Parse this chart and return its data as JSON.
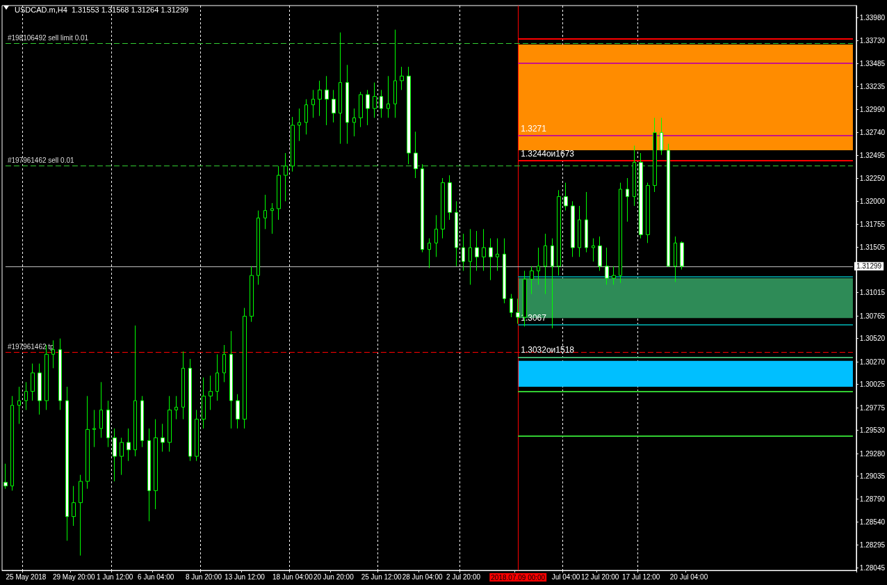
{
  "chart_data": {
    "type": "candlestick",
    "title": "USDCAD.m,H4  1.31553 1.31568 1.31264 1.31299",
    "color": "#00ff00",
    "categories": [
      null,
      null,
      null,
      "25 May 2018",
      null,
      null,
      null,
      null,
      null,
      null,
      "29 May 20:00",
      null,
      null,
      null,
      null,
      null,
      "1 Jun 12:00",
      null,
      null,
      null,
      null,
      null,
      "6 Jun 04:00",
      null,
      null,
      null,
      null,
      null,
      null,
      "8 Jun 20:00",
      null,
      null,
      null,
      null,
      null,
      "13 Jun 12:00",
      null,
      null,
      null,
      null,
      null,
      null,
      "18 Jun 04:00",
      null,
      null,
      null,
      null,
      null,
      "20 Jun 20:00",
      null,
      null,
      null,
      null,
      null,
      null,
      "25 Jun 12:00",
      null,
      null,
      null,
      null,
      null,
      "28 Jun 04:00",
      null,
      null,
      null,
      null,
      null,
      "2 Jul 20:00",
      null,
      null,
      null,
      null,
      null,
      null,
      null,
      "2018.07.09 00:00",
      null,
      null,
      null,
      null,
      null,
      null,
      "Jul 04:00",
      null,
      null,
      null,
      null,
      "12 Jul 20:00",
      null,
      null,
      null,
      null,
      null,
      "17 Jul 12:00",
      null,
      null,
      null,
      null,
      null,
      null,
      "20 Jul 04:00",
      null,
      null,
      null,
      null,
      null,
      null,
      null,
      null,
      null,
      null,
      null,
      null,
      null,
      null,
      null,
      null,
      null,
      null,
      null,
      null,
      null,
      null,
      null,
      null
    ],
    "ohlc": [
      [
        1.2897,
        1.2917,
        1.289,
        1.2893
      ],
      [
        1.2893,
        1.299,
        1.2888,
        1.298
      ],
      [
        1.298,
        1.3,
        1.296,
        1.2985
      ],
      [
        1.2985,
        1.3005,
        1.2975,
        1.2995
      ],
      [
        1.2995,
        1.3025,
        1.2985,
        1.3015
      ],
      [
        1.3015,
        1.3025,
        1.297,
        1.2985
      ],
      [
        1.2985,
        1.3045,
        1.2975,
        1.3035
      ],
      [
        1.3035,
        1.305,
        1.302,
        1.304
      ],
      [
        1.304,
        1.3052,
        1.2975,
        1.2985
      ],
      [
        1.2985,
        1.3,
        1.2834,
        1.286
      ],
      [
        1.286,
        1.2893,
        1.285,
        1.2875
      ],
      [
        1.2875,
        1.2905,
        1.2818,
        1.2898
      ],
      [
        1.2898,
        1.299,
        1.289,
        1.2954
      ],
      [
        1.2954,
        1.2975,
        1.2935,
        1.2955
      ],
      [
        1.2955,
        1.3005,
        1.2945,
        1.2975
      ],
      [
        1.2975,
        1.2985,
        1.2935,
        1.2945
      ],
      [
        1.2945,
        1.2955,
        1.2898,
        1.2925
      ],
      [
        1.2925,
        1.2945,
        1.2905,
        1.294
      ],
      [
        1.294,
        1.2955,
        1.292,
        1.2932
      ],
      [
        1.2932,
        1.3066,
        1.2925,
        1.2985
      ],
      [
        1.2985,
        1.299,
        1.2935,
        1.2942
      ],
      [
        1.2942,
        1.2955,
        1.2855,
        1.2888
      ],
      [
        1.2888,
        1.2965,
        1.2868,
        1.2945
      ],
      [
        1.2945,
        1.296,
        1.293,
        1.294
      ],
      [
        1.294,
        1.299,
        1.293,
        1.2975
      ],
      [
        1.2975,
        1.299,
        1.2965,
        1.2978
      ],
      [
        1.2978,
        1.3038,
        1.2965,
        1.302
      ],
      [
        1.302,
        1.303,
        1.292,
        1.2925
      ],
      [
        1.2925,
        1.2975,
        1.292,
        1.2965
      ],
      [
        1.2965,
        1.301,
        1.2955,
        1.299
      ],
      [
        1.299,
        1.3012,
        1.2975,
        1.2995
      ],
      [
        1.2995,
        1.3035,
        1.2985,
        1.3015
      ],
      [
        1.3015,
        1.3045,
        1.3005,
        1.3035
      ],
      [
        1.3035,
        1.306,
        1.2955,
        1.2985
      ],
      [
        1.2985,
        1.2992,
        1.2955,
        1.2965
      ],
      [
        1.2965,
        1.3085,
        1.2955,
        1.3076
      ],
      [
        1.3076,
        1.313,
        1.307,
        1.312
      ],
      [
        1.312,
        1.319,
        1.311,
        1.3182
      ],
      [
        1.3182,
        1.3207,
        1.317,
        1.319
      ],
      [
        1.319,
        1.3198,
        1.3165,
        1.3192
      ],
      [
        1.3192,
        1.3238,
        1.318,
        1.3228
      ],
      [
        1.3228,
        1.3252,
        1.32,
        1.3238
      ],
      [
        1.3238,
        1.3291,
        1.3232,
        1.3282
      ],
      [
        1.3282,
        1.33,
        1.3265,
        1.3285
      ],
      [
        1.3285,
        1.331,
        1.3272,
        1.3304
      ],
      [
        1.3304,
        1.332,
        1.329,
        1.331
      ],
      [
        1.331,
        1.333,
        1.3292,
        1.332
      ],
      [
        1.332,
        1.3335,
        1.3282,
        1.331
      ],
      [
        1.331,
        1.332,
        1.3285,
        1.3295
      ],
      [
        1.3295,
        1.3382,
        1.3262,
        1.3328
      ],
      [
        1.3328,
        1.3347,
        1.3262,
        1.3285
      ],
      [
        1.3285,
        1.33,
        1.327,
        1.329
      ],
      [
        1.329,
        1.3318,
        1.328,
        1.3315
      ],
      [
        1.3315,
        1.332,
        1.3282,
        1.33
      ],
      [
        1.33,
        1.3328,
        1.329,
        1.3313
      ],
      [
        1.3313,
        1.332,
        1.329,
        1.33
      ],
      [
        1.33,
        1.3335,
        1.329,
        1.3305
      ],
      [
        1.3305,
        1.3385,
        1.329,
        1.333
      ],
      [
        1.333,
        1.3345,
        1.332,
        1.3335
      ],
      [
        1.3335,
        1.3345,
        1.324,
        1.3252
      ],
      [
        1.3252,
        1.3275,
        1.3225,
        1.3235
      ],
      [
        1.3235,
        1.324,
        1.3145,
        1.3148
      ],
      [
        1.3148,
        1.316,
        1.3128,
        1.3155
      ],
      [
        1.3155,
        1.3185,
        1.314,
        1.317
      ],
      [
        1.317,
        1.3225,
        1.316,
        1.322
      ],
      [
        1.322,
        1.3228,
        1.318,
        1.3188
      ],
      [
        1.3188,
        1.32,
        1.313,
        1.315
      ],
      [
        1.315,
        1.3165,
        1.3125,
        1.3135
      ],
      [
        1.3135,
        1.317,
        1.311,
        1.315
      ],
      [
        1.315,
        1.3168,
        1.3125,
        1.314
      ],
      [
        1.314,
        1.317,
        1.3125,
        1.315
      ],
      [
        1.315,
        1.316,
        1.3115,
        1.314
      ],
      [
        1.314,
        1.316,
        1.3125,
        1.3143
      ],
      [
        1.3143,
        1.316,
        1.309,
        1.3095
      ],
      [
        1.3095,
        1.31,
        1.3075,
        1.308
      ],
      [
        1.308,
        1.3095,
        1.3068,
        1.3075
      ],
      [
        1.3075,
        1.3125,
        1.3065,
        1.3116
      ],
      [
        1.3116,
        1.313,
        1.31,
        1.3125
      ],
      [
        1.3125,
        1.315,
        1.311,
        1.313
      ],
      [
        1.313,
        1.3165,
        1.31,
        1.3152
      ],
      [
        1.3152,
        1.316,
        1.3063,
        1.313
      ],
      [
        1.313,
        1.3212,
        1.312,
        1.3205
      ],
      [
        1.3205,
        1.322,
        1.319,
        1.3195
      ],
      [
        1.3195,
        1.32,
        1.314,
        1.315
      ],
      [
        1.315,
        1.3195,
        1.314,
        1.318
      ],
      [
        1.318,
        1.321,
        1.3145,
        1.315
      ],
      [
        1.315,
        1.316,
        1.3135,
        1.3152
      ],
      [
        1.3152,
        1.3162,
        1.3125,
        1.313
      ],
      [
        1.313,
        1.315,
        1.311,
        1.3117
      ],
      [
        1.3117,
        1.313,
        1.311,
        1.312
      ],
      [
        1.312,
        1.322,
        1.3112,
        1.3213
      ],
      [
        1.3213,
        1.3225,
        1.3178,
        1.3205
      ],
      [
        1.3205,
        1.326,
        1.3195,
        1.3242
      ],
      [
        1.3242,
        1.3252,
        1.316,
        1.3164
      ],
      [
        1.3164,
        1.322,
        1.3155,
        1.3217
      ],
      [
        1.3217,
        1.329,
        1.321,
        1.3274
      ],
      [
        1.3274,
        1.329,
        1.325,
        1.3255
      ],
      [
        1.3255,
        1.3262,
        1.313,
        1.313
      ],
      [
        1.313,
        1.3162,
        1.3113,
        1.3155
      ],
      [
        1.31553,
        1.31568,
        1.31264,
        1.31299
      ],
      null,
      null,
      null,
      null,
      null,
      null,
      null,
      null,
      null,
      null,
      null,
      null,
      null,
      null,
      null,
      null,
      null,
      null,
      null,
      null,
      null,
      null,
      null,
      null,
      null
    ],
    "ylim": [
      1.2802,
      1.3411
    ],
    "yticks": [
      {
        "value": 1.3398,
        "label": "1.33980"
      },
      {
        "value": 1.3373,
        "label": "1.33730"
      },
      {
        "value": 1.33485,
        "label": "1.33485"
      },
      {
        "value": 1.33235,
        "label": "1.33235"
      },
      {
        "value": 1.3299,
        "label": "1.32990"
      },
      {
        "value": 1.3274,
        "label": "1.32740"
      },
      {
        "value": 1.32495,
        "label": "1.32495"
      },
      {
        "value": 1.3225,
        "label": "1.32250"
      },
      {
        "value": 1.32,
        "label": "1.32000"
      },
      {
        "value": 1.31755,
        "label": "1.31755"
      },
      {
        "value": 1.31505,
        "label": "1.31505"
      },
      {
        "value": 1.31015,
        "label": "1.31015"
      },
      {
        "value": 1.30765,
        "label": "1.30765"
      },
      {
        "value": 1.3052,
        "label": "1.30520"
      },
      {
        "value": 1.3027,
        "label": "1.30270"
      },
      {
        "value": 1.30025,
        "label": "1.30025"
      },
      {
        "value": 1.29775,
        "label": "1.29775"
      },
      {
        "value": 1.2953,
        "label": "1.29530"
      },
      {
        "value": 1.2928,
        "label": "1.29280"
      },
      {
        "value": 1.29035,
        "label": "1.29035"
      },
      {
        "value": 1.2879,
        "label": "1.28790"
      },
      {
        "value": 1.2854,
        "label": "1.28540"
      },
      {
        "value": 1.28295,
        "label": "1.28295"
      },
      {
        "value": 1.28045,
        "label": "1.28045"
      }
    ],
    "grid": "x",
    "ref_lines": [
      {
        "axis": "x",
        "value": "2018.07.09 00:00",
        "color": "#ff0000",
        "line_style": "solid"
      },
      {
        "axis": "y",
        "value": 1.337,
        "label": "#198106492 sell limit 0.01",
        "color": "#32cd32",
        "line_style": "dashed"
      },
      {
        "axis": "y",
        "value": 1.3238,
        "label": "#197961462 sell 0.01",
        "color": "#32cd32",
        "line_style": "dashed"
      },
      {
        "axis": "y",
        "value": 1.3037,
        "label": "#197961462 tp",
        "color": "#ff0000",
        "line_style": "dashed"
      },
      {
        "axis": "y",
        "value": 1.31299,
        "label": "1.31299",
        "color": "#c0c0c0"
      },
      {
        "axis": "y",
        "value": 1.3375,
        "color": "#ff0000",
        "line_style": "solid"
      },
      {
        "axis": "y",
        "value": 1.3244,
        "label": "1.3244ои1673",
        "color": "#ff0000",
        "line_style": "solid"
      },
      {
        "axis": "y",
        "value": 1.3349,
        "color": "#c71585",
        "line_style": "solid"
      },
      {
        "axis": "y",
        "value": 1.3271,
        "label": "1.3271",
        "color": "#c71585",
        "line_style": "solid"
      },
      {
        "axis": "y",
        "value": 1.3119,
        "color": "#008b8b",
        "line_style": "solid"
      },
      {
        "axis": "y",
        "value": 1.3067,
        "label": "1.3067",
        "color": "#008b8b",
        "line_style": "solid"
      },
      {
        "axis": "y",
        "value": 1.3032,
        "label": "1.3032ои1518",
        "color": "#3cb371",
        "line_style": "solid"
      },
      {
        "axis": "y",
        "value": 1.2995,
        "color": "#32cd32",
        "line_style": "solid"
      },
      {
        "axis": "y",
        "value": 1.2947,
        "color": "#32cd32",
        "line_style": "solid"
      }
    ],
    "bands": [
      {
        "axis": "y",
        "from": 1.3255,
        "to": 1.3369,
        "color": "#ff8c00"
      },
      {
        "axis": "y",
        "from": 1.3074,
        "to": 1.3117,
        "color": "#2e8b57"
      },
      {
        "axis": "y",
        "from": 1.3,
        "to": 1.3028,
        "color": "#00bfff"
      }
    ]
  }
}
